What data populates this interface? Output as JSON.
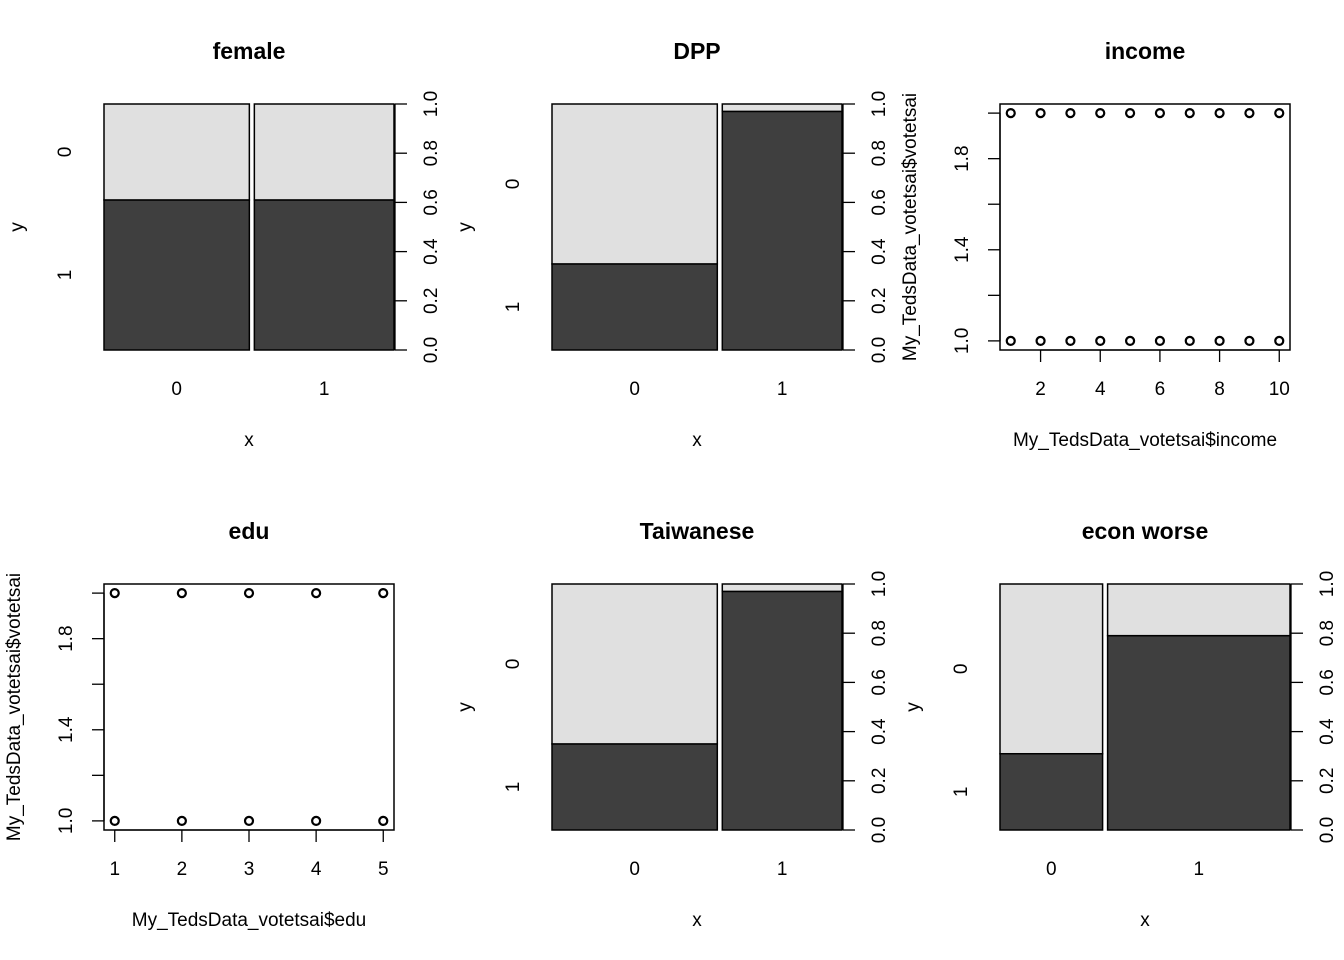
{
  "chart_data": [
    {
      "type": "spine",
      "title": "female",
      "xlabel": "x",
      "ylabel": "y",
      "categories": [
        "0",
        "1"
      ],
      "x_shares": [
        0.51,
        0.49
      ],
      "series": [
        {
          "name": "1",
          "color": "#3f3f3f",
          "values": [
            0.61,
            0.61
          ]
        },
        {
          "name": "0",
          "color": "#e0e0e0",
          "values": [
            0.39,
            0.39
          ]
        }
      ],
      "y2lim": [
        0,
        1
      ],
      "y2ticks": [
        {
          "value": 0,
          "label": "0.0"
        },
        {
          "value": 0.2,
          "label": "0.2"
        },
        {
          "value": 0.4,
          "label": "0.4"
        },
        {
          "value": 0.6,
          "label": "0.6"
        },
        {
          "value": 0.8,
          "label": "0.8"
        },
        {
          "value": 1,
          "label": "1.0"
        }
      ]
    },
    {
      "type": "spine",
      "title": "DPP",
      "xlabel": "x",
      "ylabel": "y",
      "categories": [
        "0",
        "1"
      ],
      "x_shares": [
        0.58,
        0.42
      ],
      "series": [
        {
          "name": "1",
          "color": "#3f3f3f",
          "values": [
            0.35,
            0.97
          ]
        },
        {
          "name": "0",
          "color": "#e0e0e0",
          "values": [
            0.65,
            0.03
          ]
        }
      ],
      "y2lim": [
        0,
        1
      ],
      "y2ticks": [
        {
          "value": 0,
          "label": "0.0"
        },
        {
          "value": 0.2,
          "label": "0.2"
        },
        {
          "value": 0.4,
          "label": "0.4"
        },
        {
          "value": 0.6,
          "label": "0.6"
        },
        {
          "value": 0.8,
          "label": "0.8"
        },
        {
          "value": 1,
          "label": "1.0"
        }
      ]
    },
    {
      "type": "scatter",
      "title": "income",
      "xlabel": "My_TedsData_votetsai$income",
      "ylabel": "My_TedsData_votetsai$votetsai",
      "x": [
        1,
        2,
        3,
        4,
        5,
        6,
        7,
        8,
        9,
        10,
        1,
        2,
        3,
        4,
        5,
        6,
        7,
        8,
        9,
        10
      ],
      "values": [
        1,
        1,
        1,
        1,
        1,
        1,
        1,
        1,
        1,
        1,
        2,
        2,
        2,
        2,
        2,
        2,
        2,
        2,
        2,
        2
      ],
      "xlim": [
        0.64,
        10.36
      ],
      "ylim": [
        0.96,
        2.04
      ],
      "xticks": [
        2,
        4,
        6,
        8,
        10
      ],
      "yticks": [
        {
          "value": 1,
          "label": "1.0"
        },
        1.4,
        1.8
      ],
      "yticks_unlabeled": [
        1.2,
        1.6,
        2
      ]
    },
    {
      "type": "scatter",
      "title": "edu",
      "xlabel": "My_TedsData_votetsai$edu",
      "ylabel": "My_TedsData_votetsai$votetsai",
      "x": [
        1,
        2,
        3,
        4,
        5,
        1,
        2,
        3,
        4,
        5
      ],
      "values": [
        1,
        1,
        1,
        1,
        1,
        2,
        2,
        2,
        2,
        2
      ],
      "xlim": [
        0.84,
        5.16
      ],
      "ylim": [
        0.96,
        2.04
      ],
      "xticks": [
        1,
        2,
        3,
        4,
        5
      ],
      "yticks": [
        {
          "value": 1,
          "label": "1.0"
        },
        1.4,
        1.8
      ],
      "yticks_unlabeled": [
        1.2,
        1.6,
        2
      ]
    },
    {
      "type": "spine",
      "title": "Taiwanese",
      "xlabel": "x",
      "ylabel": "y",
      "categories": [
        "0",
        "1"
      ],
      "x_shares": [
        0.58,
        0.42
      ],
      "series": [
        {
          "name": "1",
          "color": "#3f3f3f",
          "values": [
            0.35,
            0.97
          ]
        },
        {
          "name": "0",
          "color": "#e0e0e0",
          "values": [
            0.65,
            0.03
          ]
        }
      ],
      "y2lim": [
        0,
        1
      ],
      "y2ticks": [
        {
          "value": 0,
          "label": "0.0"
        },
        {
          "value": 0.2,
          "label": "0.2"
        },
        {
          "value": 0.4,
          "label": "0.4"
        },
        {
          "value": 0.6,
          "label": "0.6"
        },
        {
          "value": 0.8,
          "label": "0.8"
        },
        {
          "value": 1,
          "label": "1.0"
        }
      ]
    },
    {
      "type": "spine",
      "title": "econ worse",
      "xlabel": "x",
      "ylabel": "y",
      "categories": [
        "0",
        "1"
      ],
      "x_shares": [
        0.36,
        0.64
      ],
      "series": [
        {
          "name": "1",
          "color": "#3f3f3f",
          "values": [
            0.31,
            0.79
          ]
        },
        {
          "name": "0",
          "color": "#e0e0e0",
          "values": [
            0.69,
            0.21
          ]
        }
      ],
      "y2lim": [
        0,
        1
      ],
      "y2ticks": [
        {
          "value": 0,
          "label": "0.0"
        },
        {
          "value": 0.2,
          "label": "0.2"
        },
        {
          "value": 0.4,
          "label": "0.4"
        },
        {
          "value": 0.6,
          "label": "0.6"
        },
        {
          "value": 0.8,
          "label": "0.8"
        },
        {
          "value": 1,
          "label": "1.0"
        }
      ]
    }
  ]
}
